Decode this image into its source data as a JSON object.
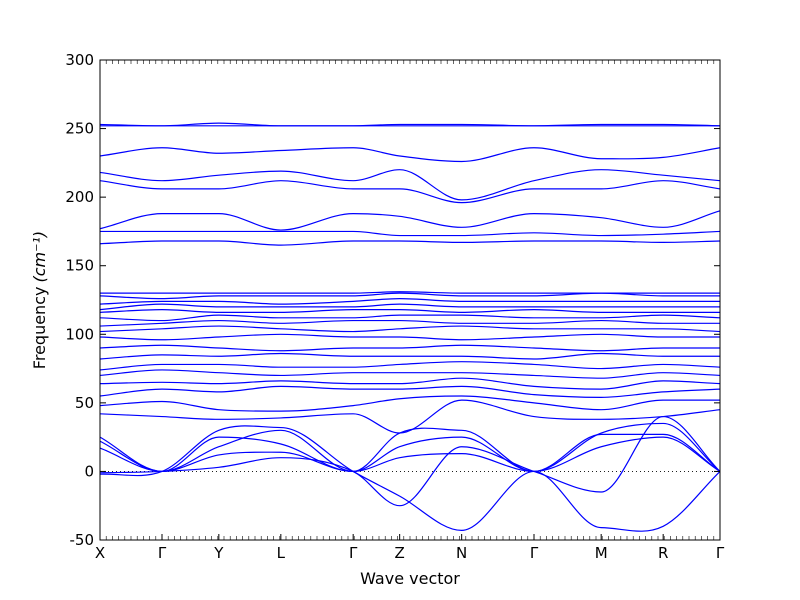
{
  "chart_data": {
    "type": "line",
    "title": "",
    "xlabel": "Wave vector",
    "ylabel": "Frequency",
    "ylabel_unit": "(cm⁻¹)",
    "ylim": [
      -50,
      300
    ],
    "yticks": [
      -50,
      0,
      50,
      100,
      150,
      200,
      250,
      300
    ],
    "x_path": [
      "X",
      "Γ",
      "Y",
      "L",
      "Γ",
      "Z",
      "N",
      "Γ",
      "M",
      "R",
      "Γ"
    ],
    "x_positions": [
      0,
      0.6,
      1.15,
      1.75,
      2.45,
      2.9,
      3.5,
      4.2,
      4.85,
      5.45,
      6.0
    ],
    "grid": false,
    "zero_line": "dotted",
    "line_color": "#0000ff",
    "series": [
      {
        "values": [
          25,
          0,
          18,
          30,
          0,
          18,
          25,
          0,
          28,
          35,
          0
        ]
      },
      {
        "values": [
          22,
          0,
          25,
          20,
          0,
          28,
          30,
          0,
          27,
          27,
          0
        ]
      },
      {
        "values": [
          17,
          0,
          12,
          14,
          0,
          10,
          13,
          0,
          18,
          25,
          0
        ]
      },
      {
        "values": [
          -2,
          0,
          30,
          32,
          0,
          -18,
          -43,
          0,
          -41,
          -40,
          0
        ]
      },
      {
        "values": [
          -1,
          0,
          3,
          10,
          0,
          -25,
          18,
          0,
          -15,
          40,
          0
        ]
      },
      {
        "values": [
          42,
          40,
          38,
          39,
          42,
          28,
          52,
          40,
          38,
          40,
          45
        ]
      },
      {
        "values": [
          48,
          51,
          45,
          44,
          48,
          53,
          55,
          50,
          45,
          52,
          52
        ]
      },
      {
        "values": [
          55,
          60,
          58,
          62,
          60,
          60,
          62,
          56,
          54,
          58,
          60
        ]
      },
      {
        "values": [
          64,
          65,
          64,
          66,
          64,
          64,
          68,
          62,
          60,
          66,
          64
        ]
      },
      {
        "values": [
          70,
          74,
          72,
          70,
          72,
          72,
          72,
          70,
          68,
          72,
          70
        ]
      },
      {
        "values": [
          74,
          78,
          78,
          76,
          76,
          78,
          80,
          78,
          75,
          78,
          76
        ]
      },
      {
        "values": [
          82,
          85,
          84,
          86,
          84,
          84,
          84,
          82,
          86,
          84,
          84
        ]
      },
      {
        "values": [
          90,
          92,
          90,
          88,
          90,
          90,
          92,
          90,
          88,
          90,
          90
        ]
      },
      {
        "values": [
          98,
          96,
          98,
          100,
          98,
          98,
          96,
          98,
          100,
          98,
          98
        ]
      },
      {
        "values": [
          102,
          104,
          106,
          104,
          102,
          104,
          106,
          104,
          104,
          104,
          102
        ]
      },
      {
        "values": [
          106,
          108,
          110,
          108,
          110,
          110,
          108,
          108,
          110,
          108,
          108
        ]
      },
      {
        "values": [
          112,
          110,
          114,
          112,
          112,
          114,
          114,
          112,
          112,
          114,
          112
        ]
      },
      {
        "values": [
          116,
          118,
          116,
          116,
          118,
          118,
          116,
          118,
          116,
          116,
          116
        ]
      },
      {
        "values": [
          118,
          122,
          120,
          120,
          120,
          122,
          120,
          120,
          120,
          120,
          120
        ]
      },
      {
        "values": [
          122,
          124,
          124,
          122,
          124,
          126,
          124,
          124,
          124,
          124,
          124
        ]
      },
      {
        "values": [
          128,
          126,
          128,
          128,
          128,
          130,
          128,
          128,
          130,
          128,
          128
        ]
      },
      {
        "values": [
          130,
          130,
          130,
          130,
          130,
          131,
          130,
          130,
          130,
          130,
          130
        ]
      },
      {
        "values": [
          166,
          168,
          168,
          165,
          168,
          168,
          167,
          168,
          168,
          167,
          168
        ]
      },
      {
        "values": [
          175,
          175,
          175,
          175,
          175,
          172,
          172,
          174,
          172,
          173,
          175
        ]
      },
      {
        "values": [
          177,
          188,
          188,
          176,
          188,
          186,
          178,
          188,
          185,
          178,
          190
        ]
      },
      {
        "values": [
          212,
          206,
          206,
          212,
          206,
          206,
          196,
          206,
          206,
          212,
          206
        ]
      },
      {
        "values": [
          218,
          212,
          216,
          219,
          212,
          220,
          198,
          212,
          220,
          216,
          212
        ]
      },
      {
        "values": [
          230,
          236,
          232,
          234,
          236,
          230,
          226,
          236,
          228,
          229,
          236
        ]
      },
      {
        "values": [
          252,
          252,
          254,
          252,
          252,
          252,
          252,
          252,
          252,
          252,
          252
        ]
      },
      {
        "values": [
          253,
          252,
          252,
          252,
          252,
          253,
          253,
          252,
          253,
          253,
          252
        ]
      }
    ]
  }
}
